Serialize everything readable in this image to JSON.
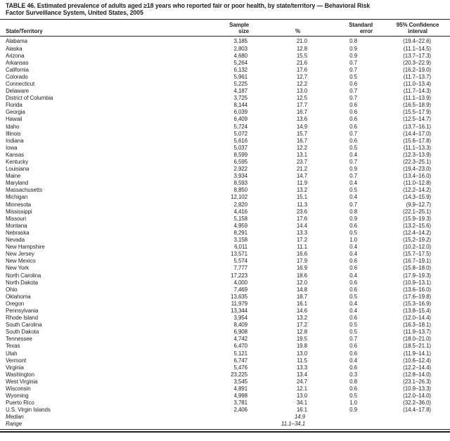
{
  "table": {
    "title_line1": "TABLE 46. Estimated prevalence of adults aged ≥18 years who reported fair or poor health, by state/territory — Behavioral Risk",
    "title_line2": "Factor Surveillance System, United States, 2005",
    "columns": {
      "state": "State/Territory",
      "sample_line1": "Sample",
      "sample_line2": "size",
      "pct": "%",
      "se_line1": "Standard",
      "se_line2": "error",
      "ci_line1": "95% Confidence",
      "ci_line2": "interval"
    },
    "rows": [
      {
        "state": "Alabama",
        "sample": "3,185",
        "pct": "21.0",
        "se": "0.8",
        "ci": "(19.4–22.6)"
      },
      {
        "state": "Alaska",
        "sample": "2,803",
        "pct": "12.8",
        "se": "0.9",
        "ci": "(11.1–14.5)"
      },
      {
        "state": "Arizona",
        "sample": "4,680",
        "pct": "15.5",
        "se": "0.9",
        "ci": "(13.7–17.3)"
      },
      {
        "state": "Arkansas",
        "sample": "5,264",
        "pct": "21.6",
        "se": "0.7",
        "ci": "(20.3–22.9)"
      },
      {
        "state": "California",
        "sample": "6,132",
        "pct": "17.6",
        "se": "0.7",
        "ci": "(16.2–19.0)"
      },
      {
        "state": "Colorado",
        "sample": "5,961",
        "pct": "12.7",
        "se": "0.5",
        "ci": "(11.7–13.7)"
      },
      {
        "state": "Connecticut",
        "sample": "5,225",
        "pct": "12.2",
        "se": "0.6",
        "ci": "(11.0–13.4)"
      },
      {
        "state": "Delaware",
        "sample": "4,187",
        "pct": "13.0",
        "se": "0.7",
        "ci": "(11.7–14.3)"
      },
      {
        "state": "District of Columbia",
        "sample": "3,725",
        "pct": "12.5",
        "se": "0.7",
        "ci": "(11.1–13.9)"
      },
      {
        "state": "Florida",
        "sample": "8,144",
        "pct": "17.7",
        "se": "0.6",
        "ci": "(16.5–18.9)"
      },
      {
        "state": "Georgia",
        "sample": "6,039",
        "pct": "16.7",
        "se": "0.6",
        "ci": "(15.5–17.9)"
      },
      {
        "state": "Hawaii",
        "sample": "6,409",
        "pct": "13.6",
        "se": "0.6",
        "ci": "(12.5–14.7)"
      },
      {
        "state": "Idaho",
        "sample": "5,724",
        "pct": "14.9",
        "se": "0.6",
        "ci": "(13.7–16.1)"
      },
      {
        "state": "Illinois",
        "sample": "5,072",
        "pct": "15.7",
        "se": "0.7",
        "ci": "(14.4–17.0)"
      },
      {
        "state": "Indiana",
        "sample": "5,616",
        "pct": "16.7",
        "se": "0.6",
        "ci": "(15.6–17.8)"
      },
      {
        "state": "Iowa",
        "sample": "5,037",
        "pct": "12.2",
        "se": "0.5",
        "ci": "(11.1–13.3)"
      },
      {
        "state": "Kansas",
        "sample": "8,599",
        "pct": "13.1",
        "se": "0.4",
        "ci": "(12.3–13.9)"
      },
      {
        "state": "Kentucky",
        "sample": "6,595",
        "pct": "23.7",
        "se": "0.7",
        "ci": "(22.3–25.1)"
      },
      {
        "state": "Louisiana",
        "sample": "2,922",
        "pct": "21.2",
        "se": "0.9",
        "ci": "(19.4–23.0)"
      },
      {
        "state": "Maine",
        "sample": "3,934",
        "pct": "14.7",
        "se": "0.7",
        "ci": "(13.4–16.0)"
      },
      {
        "state": "Maryland",
        "sample": "8,593",
        "pct": "11.9",
        "se": "0.4",
        "ci": "(11.0–12.8)"
      },
      {
        "state": "Massachusetts",
        "sample": "8,850",
        "pct": "13.2",
        "se": "0.5",
        "ci": "(12.2–14.2)"
      },
      {
        "state": "Michigan",
        "sample": "12,102",
        "pct": "15.1",
        "se": "0.4",
        "ci": "(14.3–15.9)"
      },
      {
        "state": "Minnesota",
        "sample": "2,820",
        "pct": "11.3",
        "se": "0.7",
        "ci": "(9.9–12.7)"
      },
      {
        "state": "Mississippi",
        "sample": "4,416",
        "pct": "23.6",
        "se": "0.8",
        "ci": "(22.1–25.1)"
      },
      {
        "state": "Missouri",
        "sample": "5,158",
        "pct": "17.6",
        "se": "0.9",
        "ci": "(15.9–19.3)"
      },
      {
        "state": "Montana",
        "sample": "4,959",
        "pct": "14.4",
        "se": "0.6",
        "ci": "(13.2–15.6)"
      },
      {
        "state": "Nebraska",
        "sample": "8,291",
        "pct": "13.3",
        "se": "0.5",
        "ci": "(12.4–14.2)"
      },
      {
        "state": "Nevada",
        "sample": "3,158",
        "pct": "17.2",
        "se": "1.0",
        "ci": "(15.2–19.2)"
      },
      {
        "state": "New Hampshire",
        "sample": "6,011",
        "pct": "11.1",
        "se": "0.4",
        "ci": "(10.2–12.0)"
      },
      {
        "state": "New Jersey",
        "sample": "13,571",
        "pct": "16.6",
        "se": "0.4",
        "ci": "(15.7–17.5)"
      },
      {
        "state": "New Mexico",
        "sample": "5,574",
        "pct": "17.9",
        "se": "0.6",
        "ci": "(16.7–19.1)"
      },
      {
        "state": "New York",
        "sample": "7,777",
        "pct": "16.9",
        "se": "0.6",
        "ci": "(15.8–18.0)"
      },
      {
        "state": "North Carolina",
        "sample": "17,223",
        "pct": "18.6",
        "se": "0.4",
        "ci": "(17.9–19.3)"
      },
      {
        "state": "North Dakota",
        "sample": "4,000",
        "pct": "12.0",
        "se": "0.6",
        "ci": "(10.9–13.1)"
      },
      {
        "state": "Ohio",
        "sample": "7,469",
        "pct": "14.8",
        "se": "0.6",
        "ci": "(13.6–16.0)"
      },
      {
        "state": "Oklahoma",
        "sample": "13,635",
        "pct": "18.7",
        "se": "0.5",
        "ci": "(17.6–19.8)"
      },
      {
        "state": "Oregon",
        "sample": "11,979",
        "pct": "16.1",
        "se": "0.4",
        "ci": "(15.3–16.9)"
      },
      {
        "state": "Pennsylvania",
        "sample": "13,344",
        "pct": "14.6",
        "se": "0.4",
        "ci": "(13.8–15.4)"
      },
      {
        "state": "Rhode Island",
        "sample": "3,954",
        "pct": "13.2",
        "se": "0.6",
        "ci": "(12.0–14.4)"
      },
      {
        "state": "South Carolina",
        "sample": "8,409",
        "pct": "17.2",
        "se": "0.5",
        "ci": "(16.3–18.1)"
      },
      {
        "state": "South Dakota",
        "sample": "6,908",
        "pct": "12.8",
        "se": "0.5",
        "ci": "(11.9–13.7)"
      },
      {
        "state": "Tennessee",
        "sample": "4,742",
        "pct": "19.5",
        "se": "0.7",
        "ci": "(18.0–21.0)"
      },
      {
        "state": "Texas",
        "sample": "6,470",
        "pct": "19.8",
        "se": "0.6",
        "ci": "(18.5–21.1)"
      },
      {
        "state": "Utah",
        "sample": "5,121",
        "pct": "13.0",
        "se": "0.6",
        "ci": "(11.9–14.1)"
      },
      {
        "state": "Vermont",
        "sample": "6,747",
        "pct": "11.5",
        "se": "0.4",
        "ci": "(10.6–12.4)"
      },
      {
        "state": "Virginia",
        "sample": "5,476",
        "pct": "13.3",
        "se": "0.6",
        "ci": "(12.2–14.4)"
      },
      {
        "state": "Washington",
        "sample": "23,225",
        "pct": "13.4",
        "se": "0.3",
        "ci": "(12.8–14.0)"
      },
      {
        "state": "West Virginia",
        "sample": "3,545",
        "pct": "24.7",
        "se": "0.8",
        "ci": "(23.1–26.3)"
      },
      {
        "state": "Wisconsin",
        "sample": "4,891",
        "pct": "12.1",
        "se": "0.6",
        "ci": "(10.9–13.3)"
      },
      {
        "state": "Wyoming",
        "sample": "4,998",
        "pct": "13.0",
        "se": "0.5",
        "ci": "(12.0–14.0)"
      },
      {
        "state": "Puerto Rico",
        "sample": "3,781",
        "pct": "34.1",
        "se": "1.0",
        "ci": "(32.2–36.0)"
      },
      {
        "state": "U.S. Virgin Islands",
        "sample": "2,406",
        "pct": "16.1",
        "se": "0.9",
        "ci": "(14.4–17.8)"
      }
    ],
    "summary_rows": [
      {
        "label": "Median",
        "pct": "14.9"
      },
      {
        "label": "Range",
        "pct": "11.1–34.1"
      }
    ]
  }
}
